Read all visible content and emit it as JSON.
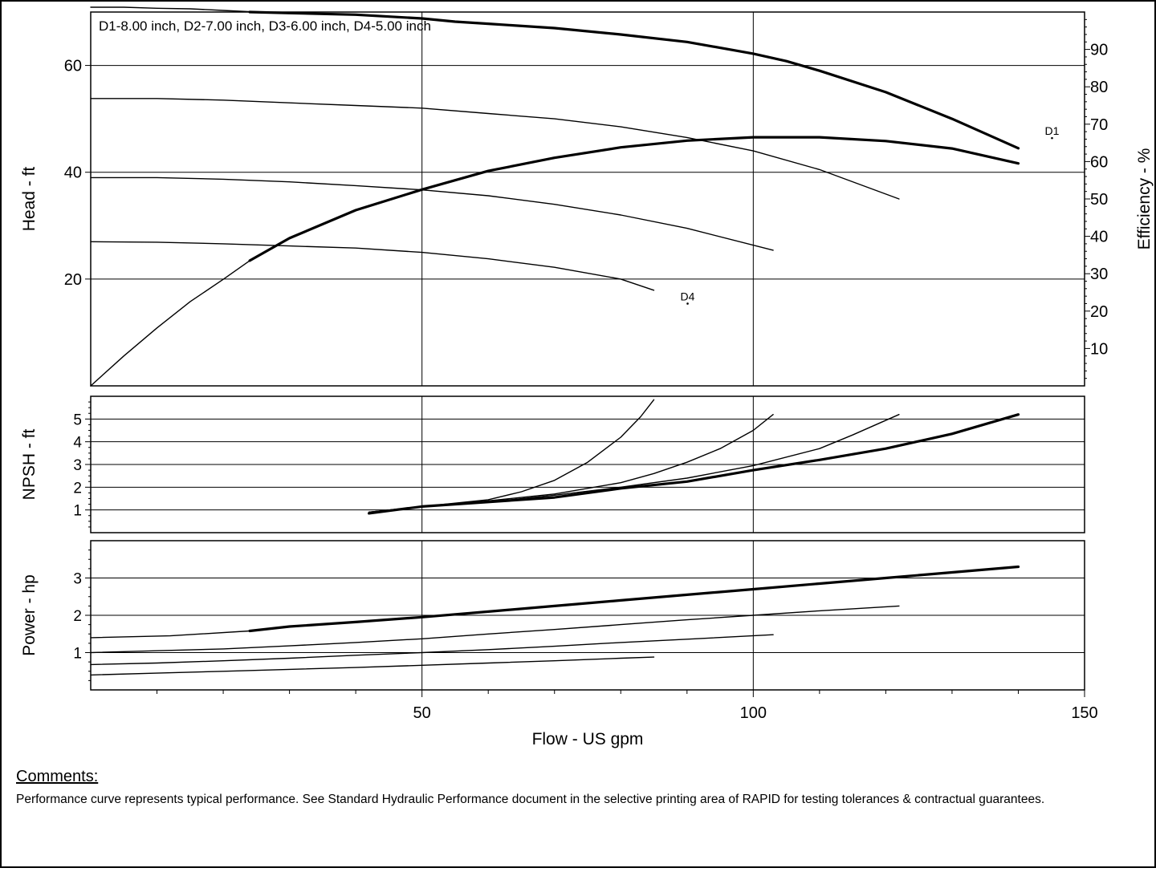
{
  "chart_data": [
    {
      "type": "line",
      "panel": "head",
      "legend_text": "D1-8.00 inch,  D2-7.00 inch,  D3-6.00 inch,  D4-5.00 inch",
      "xlim": [
        0,
        150
      ],
      "ylim": [
        0,
        70
      ],
      "y_ticks": [
        20,
        40,
        60
      ],
      "ylabel": "Head - ft",
      "y2label": "Efficiency - %",
      "y2lim": [
        0,
        100
      ],
      "y2_ticks": [
        10,
        20,
        30,
        40,
        50,
        60,
        70,
        80,
        90
      ],
      "curve_labels": [
        {
          "text": "D1",
          "x": 144,
          "y": 47
        },
        {
          "text": "D4",
          "x": 89,
          "y": 16
        }
      ],
      "series": [
        {
          "name": "D1",
          "axis": "left",
          "weight": "thin",
          "x": [
            0,
            5,
            10,
            15,
            20,
            25
          ],
          "y": [
            70.9,
            70.9,
            70.7,
            70.6,
            70.3,
            70
          ]
        },
        {
          "name": "D1",
          "axis": "left",
          "weight": "heavy",
          "x": [
            24,
            30,
            40,
            50,
            55,
            60,
            70,
            80,
            90,
            100,
            105,
            110,
            120,
            130,
            140
          ],
          "y": [
            70,
            69.8,
            69.5,
            68.8,
            68.2,
            67.8,
            67,
            65.8,
            64.4,
            62.2,
            60.8,
            59,
            55,
            50,
            44.5
          ]
        },
        {
          "name": "D2",
          "axis": "left",
          "weight": "thin",
          "x": [
            0,
            10,
            20,
            30,
            40,
            50,
            60,
            70,
            80,
            90,
            100,
            110,
            122
          ],
          "y": [
            53.8,
            53.8,
            53.5,
            53,
            52.5,
            52,
            51,
            50,
            48.5,
            46.5,
            44,
            40.5,
            35
          ]
        },
        {
          "name": "D3",
          "axis": "left",
          "weight": "thin",
          "x": [
            0,
            10,
            20,
            30,
            40,
            50,
            60,
            70,
            80,
            90,
            103
          ],
          "y": [
            39,
            39,
            38.7,
            38.2,
            37.5,
            36.7,
            35.6,
            34,
            32,
            29.5,
            25.4
          ]
        },
        {
          "name": "D4",
          "axis": "left",
          "weight": "thin",
          "x": [
            0,
            10,
            20,
            30,
            40,
            50,
            60,
            70,
            80,
            85
          ],
          "y": [
            27,
            26.9,
            26.6,
            26.2,
            25.8,
            25,
            23.8,
            22.2,
            20,
            17.9
          ]
        },
        {
          "name": "Efficiency",
          "axis": "right",
          "weight": "thin",
          "x": [
            0,
            5,
            10,
            15,
            20,
            24
          ],
          "y": [
            0,
            8,
            15.5,
            22.5,
            28.5,
            33.5
          ]
        },
        {
          "name": "Efficiency",
          "axis": "right",
          "weight": "heavy",
          "x": [
            24,
            30,
            40,
            50,
            55,
            60,
            70,
            80,
            90,
            100,
            110,
            120,
            130,
            140
          ],
          "y": [
            33.5,
            39.5,
            47,
            52.5,
            55,
            57.5,
            61,
            63.8,
            65.6,
            66.5,
            66.5,
            65.5,
            63.5,
            59.5
          ]
        }
      ]
    },
    {
      "type": "line",
      "panel": "npsh",
      "xlim": [
        0,
        150
      ],
      "ylim": [
        0,
        6
      ],
      "y_ticks": [
        1,
        2,
        3,
        4,
        5
      ],
      "ylabel": "NPSH - ft",
      "series": [
        {
          "name": "D4",
          "weight": "thin",
          "x": [
            42,
            50,
            60,
            65,
            70,
            75,
            80,
            83,
            85
          ],
          "y": [
            0.9,
            1.15,
            1.45,
            1.8,
            2.3,
            3.1,
            4.2,
            5.1,
            5.85
          ]
        },
        {
          "name": "D3",
          "weight": "thin",
          "x": [
            42,
            50,
            60,
            70,
            80,
            85,
            90,
            95,
            100,
            103
          ],
          "y": [
            0.9,
            1.15,
            1.4,
            1.7,
            2.2,
            2.6,
            3.1,
            3.7,
            4.5,
            5.2
          ]
        },
        {
          "name": "D2",
          "weight": "thin",
          "x": [
            42,
            50,
            60,
            70,
            80,
            90,
            100,
            110,
            115,
            122
          ],
          "y": [
            0.9,
            1.15,
            1.35,
            1.65,
            2.0,
            2.4,
            2.95,
            3.7,
            4.3,
            5.2
          ]
        },
        {
          "name": "D1",
          "weight": "heavy",
          "x": [
            42,
            50,
            60,
            70,
            80,
            90,
            100,
            110,
            120,
            130,
            140
          ],
          "y": [
            0.85,
            1.15,
            1.35,
            1.55,
            1.95,
            2.25,
            2.75,
            3.2,
            3.7,
            4.35,
            5.2
          ]
        }
      ]
    },
    {
      "type": "line",
      "panel": "power",
      "xlim": [
        0,
        150
      ],
      "xlabel": "Flow - US gpm",
      "x_ticks": [
        50,
        100,
        150
      ],
      "ylim": [
        0,
        4
      ],
      "y_ticks": [
        1,
        2,
        3
      ],
      "ylabel": "Power - hp",
      "series": [
        {
          "name": "D1",
          "weight": "thin",
          "x": [
            0,
            12,
            24
          ],
          "y": [
            1.4,
            1.45,
            1.58
          ]
        },
        {
          "name": "D1",
          "weight": "heavy",
          "x": [
            24,
            30,
            40,
            50,
            60,
            70,
            80,
            90,
            100,
            110,
            120,
            130,
            140
          ],
          "y": [
            1.58,
            1.7,
            1.82,
            1.95,
            2.1,
            2.25,
            2.4,
            2.55,
            2.7,
            2.85,
            3.0,
            3.15,
            3.3
          ]
        },
        {
          "name": "D2",
          "weight": "thin",
          "x": [
            0,
            10,
            20,
            30,
            40,
            50,
            60,
            70,
            80,
            90,
            100,
            110,
            122
          ],
          "y": [
            1.0,
            1.05,
            1.1,
            1.18,
            1.27,
            1.37,
            1.5,
            1.62,
            1.75,
            1.88,
            2.0,
            2.12,
            2.25
          ]
        },
        {
          "name": "D3",
          "weight": "thin",
          "x": [
            0,
            10,
            20,
            30,
            40,
            50,
            60,
            70,
            80,
            90,
            103
          ],
          "y": [
            0.68,
            0.72,
            0.78,
            0.85,
            0.93,
            1.0,
            1.08,
            1.17,
            1.27,
            1.36,
            1.48
          ]
        },
        {
          "name": "D4",
          "weight": "thin",
          "x": [
            0,
            10,
            20,
            30,
            40,
            50,
            60,
            70,
            80,
            85
          ],
          "y": [
            0.4,
            0.45,
            0.5,
            0.55,
            0.6,
            0.66,
            0.72,
            0.78,
            0.85,
            0.88
          ]
        }
      ]
    }
  ],
  "comments": {
    "title": "Comments:",
    "text": "Performance curve represents typical performance.  See Standard Hydraulic Performance document in the selective printing area of RAPID for testing tolerances & contractual guarantees."
  }
}
